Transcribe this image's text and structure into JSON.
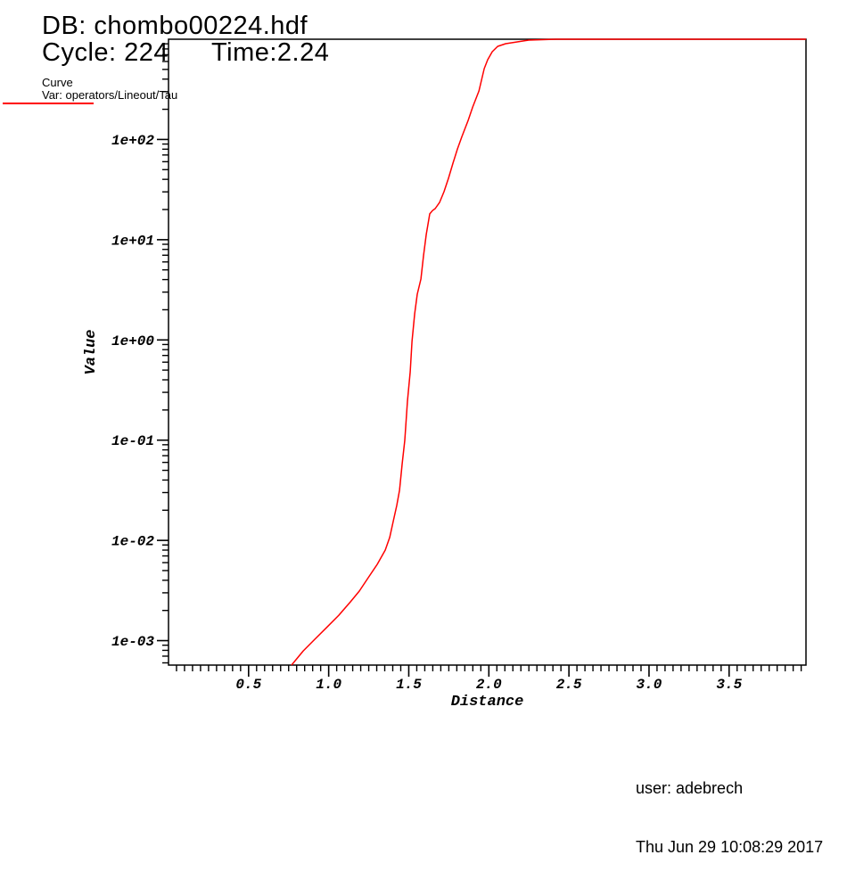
{
  "header": {
    "db": "DB: chombo00224.hdf",
    "cycle": "Cycle: 224",
    "time": "Time:2.24"
  },
  "legend": {
    "plot_type": "Curve",
    "var": "Var: operators/Lineout/Tau",
    "line_color": "#ff0000"
  },
  "footer": {
    "user": "user: adebrech",
    "timestamp": "Thu Jun 29 10:08:29 2017"
  },
  "colors": {
    "curve": "#ff0000",
    "axis": "#000000",
    "background": "#ffffff",
    "text": "#000000"
  },
  "chart_data": {
    "type": "line",
    "title": "",
    "xlabel": "Distance",
    "ylabel": "Value",
    "xscale": "linear",
    "yscale": "log",
    "xlim": [
      0,
      3.98
    ],
    "ylim": [
      0.00057,
      1000
    ],
    "grid": false,
    "frame": true,
    "legend_position": "top-left",
    "x_major_ticks": [
      0.5,
      1.0,
      1.5,
      2.0,
      2.5,
      3.0,
      3.5
    ],
    "x_tick_labels": [
      "0.5",
      "1.0",
      "1.5",
      "2.0",
      "2.5",
      "3.0",
      "3.5"
    ],
    "x_minor_step": 0.05,
    "y_major_ticks": [
      100,
      10,
      1,
      0.1,
      0.01,
      0.001
    ],
    "y_tick_labels": [
      "1e+02",
      "1e+01",
      "1e+00",
      "1e-01",
      "1e-02",
      "1e-03"
    ],
    "series": [
      {
        "name": "operators/Lineout/Tau",
        "color": "#ff0000",
        "points": [
          [
            0.768,
            0.00057
          ],
          [
            0.841,
            0.00079
          ],
          [
            0.913,
            0.00103
          ],
          [
            0.991,
            0.00137
          ],
          [
            1.063,
            0.00179
          ],
          [
            1.136,
            0.00244
          ],
          [
            1.191,
            0.00312
          ],
          [
            1.247,
            0.00424
          ],
          [
            1.303,
            0.00577
          ],
          [
            1.353,
            0.008
          ],
          [
            1.381,
            0.0107
          ],
          [
            1.403,
            0.0154
          ],
          [
            1.425,
            0.0223
          ],
          [
            1.442,
            0.0316
          ],
          [
            1.459,
            0.0583
          ],
          [
            1.475,
            0.0993
          ],
          [
            1.492,
            0.245
          ],
          [
            1.509,
            0.481
          ],
          [
            1.52,
            0.966
          ],
          [
            1.537,
            1.82
          ],
          [
            1.553,
            2.86
          ],
          [
            1.576,
            4.05
          ],
          [
            1.592,
            6.9
          ],
          [
            1.609,
            11.3
          ],
          [
            1.631,
            18.1
          ],
          [
            1.648,
            19.5
          ],
          [
            1.665,
            20.4
          ],
          [
            1.693,
            23.6
          ],
          [
            1.72,
            30.1
          ],
          [
            1.748,
            41.0
          ],
          [
            1.776,
            58.1
          ],
          [
            1.804,
            80.6
          ],
          [
            1.832,
            107
          ],
          [
            1.871,
            155
          ],
          [
            1.899,
            211
          ],
          [
            1.938,
            305
          ],
          [
            1.971,
            509
          ],
          [
            1.993,
            624
          ],
          [
            2.021,
            750
          ],
          [
            2.055,
            849
          ],
          [
            2.105,
            902
          ],
          [
            2.177,
            940
          ],
          [
            2.249,
            980
          ],
          [
            2.42,
            1000
          ],
          [
            3.98,
            1000
          ]
        ]
      }
    ]
  }
}
